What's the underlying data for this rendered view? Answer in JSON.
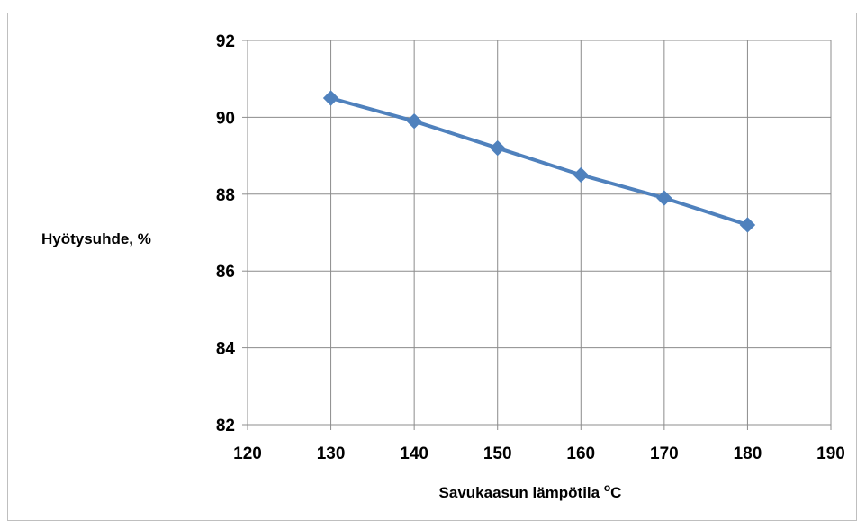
{
  "chart_data": {
    "type": "line",
    "title": "",
    "xlabel": "Savukaasun lämpötila ",
    "xlabel_sup": "o",
    "xlabel_unit": "C",
    "ylabel": "Hyötysuhde, %",
    "xlim": [
      120,
      190
    ],
    "ylim": [
      82,
      92
    ],
    "xticks": [
      "120",
      "130",
      "140",
      "150",
      "160",
      "170",
      "180",
      "190"
    ],
    "yticks": [
      "82",
      "84",
      "86",
      "88",
      "90",
      "92"
    ],
    "grid": true,
    "legend": "none",
    "series": [
      {
        "color": "#4f81bd",
        "marker": "diamond",
        "x": [
          130,
          140,
          150,
          160,
          170,
          180
        ],
        "y": [
          90.5,
          89.9,
          89.2,
          88.5,
          87.9,
          87.2
        ]
      }
    ]
  }
}
